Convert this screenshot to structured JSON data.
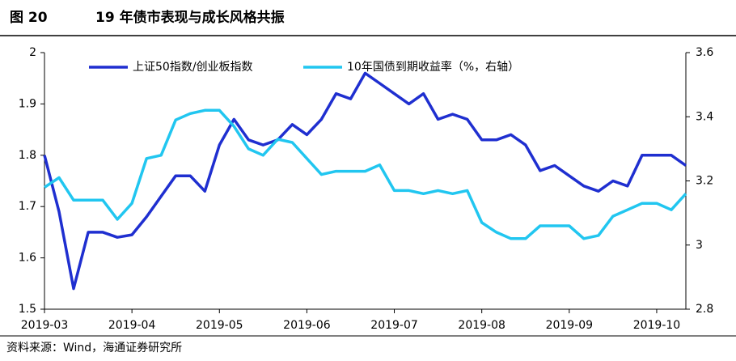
{
  "chart_data": {
    "type": "line",
    "figure_label": "图 20",
    "title": "19 年债市表现与成长风格共振",
    "source": "资料来源：Wind，海通证券研究所",
    "categories": [
      "2019-03",
      null,
      null,
      null,
      null,
      null,
      "2019-04",
      null,
      null,
      null,
      null,
      null,
      "2019-05",
      null,
      null,
      null,
      null,
      null,
      "2019-06",
      null,
      null,
      null,
      null,
      null,
      "2019-07",
      null,
      null,
      null,
      null,
      null,
      "2019-08",
      null,
      null,
      null,
      null,
      null,
      "2019-09",
      null,
      null,
      null,
      null,
      null,
      "2019-10",
      null,
      null
    ],
    "series": [
      {
        "name": "上证50指数/创业板指数",
        "color": "#1f2fd0",
        "axis": "y",
        "values": [
          1.8,
          1.69,
          1.54,
          1.65,
          1.65,
          1.64,
          1.645,
          1.68,
          1.72,
          1.76,
          1.76,
          1.73,
          1.82,
          1.87,
          1.83,
          1.82,
          1.83,
          1.86,
          1.84,
          1.87,
          1.92,
          1.91,
          1.96,
          1.94,
          1.92,
          1.9,
          1.92,
          1.87,
          1.88,
          1.87,
          1.83,
          1.83,
          1.84,
          1.82,
          1.77,
          1.78,
          1.76,
          1.74,
          1.73,
          1.75,
          1.74,
          1.8,
          1.8,
          1.8,
          1.78
        ]
      },
      {
        "name": "10年国债到期收益率（%，右轴）",
        "color": "#21c6f0",
        "axis": "y2",
        "values": [
          3.18,
          3.21,
          3.14,
          3.14,
          3.14,
          3.08,
          3.13,
          3.27,
          3.28,
          3.39,
          3.41,
          3.42,
          3.42,
          3.37,
          3.3,
          3.28,
          3.33,
          3.32,
          3.27,
          3.22,
          3.23,
          3.23,
          3.23,
          3.25,
          3.17,
          3.17,
          3.16,
          3.17,
          3.16,
          3.17,
          3.07,
          3.04,
          3.02,
          3.02,
          3.06,
          3.06,
          3.06,
          3.02,
          3.03,
          3.09,
          3.11,
          3.13,
          3.13,
          3.11,
          3.16
        ]
      }
    ],
    "ylim": [
      1.5,
      2
    ],
    "yticks": [
      1.5,
      1.6,
      1.7,
      1.8,
      1.9,
      2
    ],
    "y2lim": [
      2.8,
      3.6
    ],
    "y2ticks": [
      2.8,
      3,
      3.2,
      3.4,
      3.6
    ]
  }
}
